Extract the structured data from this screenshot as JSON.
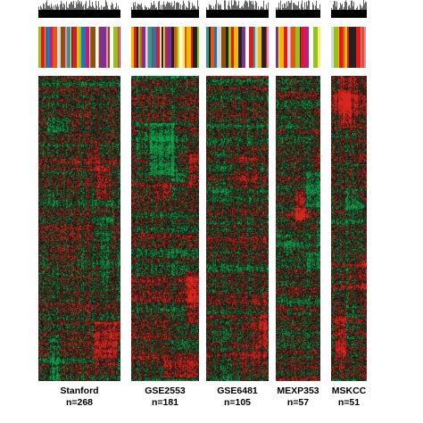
{
  "figure": {
    "heatmap_colors": {
      "up": "#d7261e",
      "down": "#11a04a",
      "neutral": "#0f0f0f"
    },
    "colorbar_palette": [
      "#e31a1c",
      "#f5b800",
      "#7b3294",
      "#1f78b4",
      "#8fc31f",
      "#e6550d",
      "#d9d9d9",
      "#c51b7d",
      "#8c510a",
      "#35978f",
      "#222222",
      "#f781bf",
      "#ffed6f",
      "#ffffff"
    ],
    "datasets": [
      {
        "name": "Stanford",
        "n_label": "n=268",
        "bar_colors": [
          "#8fc31f",
          "#e31a1c",
          "#f5b800",
          "#7b3294",
          "#1f78b4",
          "#c51b7d",
          "#e6550d",
          "#d9d9d9",
          "#8c510a",
          "#f781bf",
          "#35978f",
          "#ffed6f",
          "#222222",
          "#e31a1c",
          "#7b3294",
          "#f5b800",
          "#8fc31f",
          "#1f78b4",
          "#c51b7d",
          "#d9d9d9",
          "#e6550d",
          "#8c510a",
          "#ffffff",
          "#f5b800"
        ]
      },
      {
        "name": "GSE2553",
        "n_label": "n=181",
        "bar_colors": [
          "#f5b800",
          "#e31a1c",
          "#222222",
          "#8fc31f",
          "#e6550d",
          "#7b3294",
          "#d9d9d9",
          "#f781bf",
          "#35978f",
          "#8c510a",
          "#1f78b4",
          "#e31a1c",
          "#c51b7d",
          "#ffed6f",
          "#222222",
          "#d9d9d9",
          "#8fc31f",
          "#e31a1c",
          "#7b3294",
          "#222222"
        ]
      },
      {
        "name": "GSE6481",
        "n_label": "n=105",
        "bar_colors": [
          "#35978f",
          "#222222",
          "#e6550d",
          "#1f78b4",
          "#d9d9d9",
          "#8c510a",
          "#222222",
          "#8fc31f",
          "#e31a1c",
          "#f5b800",
          "#222222",
          "#7b3294",
          "#ffffff",
          "#e31a1c",
          "#35978f",
          "#d9d9d9",
          "#f5b800",
          "#222222"
        ]
      },
      {
        "name": "MEXP353",
        "n_label": "n=57",
        "bar_colors": [
          "#7b3294",
          "#ffed6f",
          "#f5b800",
          "#e31a1c",
          "#d9d9d9",
          "#f781bf",
          "#e6550d",
          "#8fc31f",
          "#222222",
          "#e31a1c",
          "#c51b7d",
          "#ffffff"
        ]
      },
      {
        "name": "MSKCC",
        "n_label": "n=51",
        "bar_colors": [
          "#d9d9d9",
          "#8fc31f",
          "#f5b800",
          "#e31a1c",
          "#e6550d",
          "#8fc31f",
          "#f5b800",
          "#e31a1c",
          "#222222",
          "#222222"
        ]
      }
    ]
  }
}
